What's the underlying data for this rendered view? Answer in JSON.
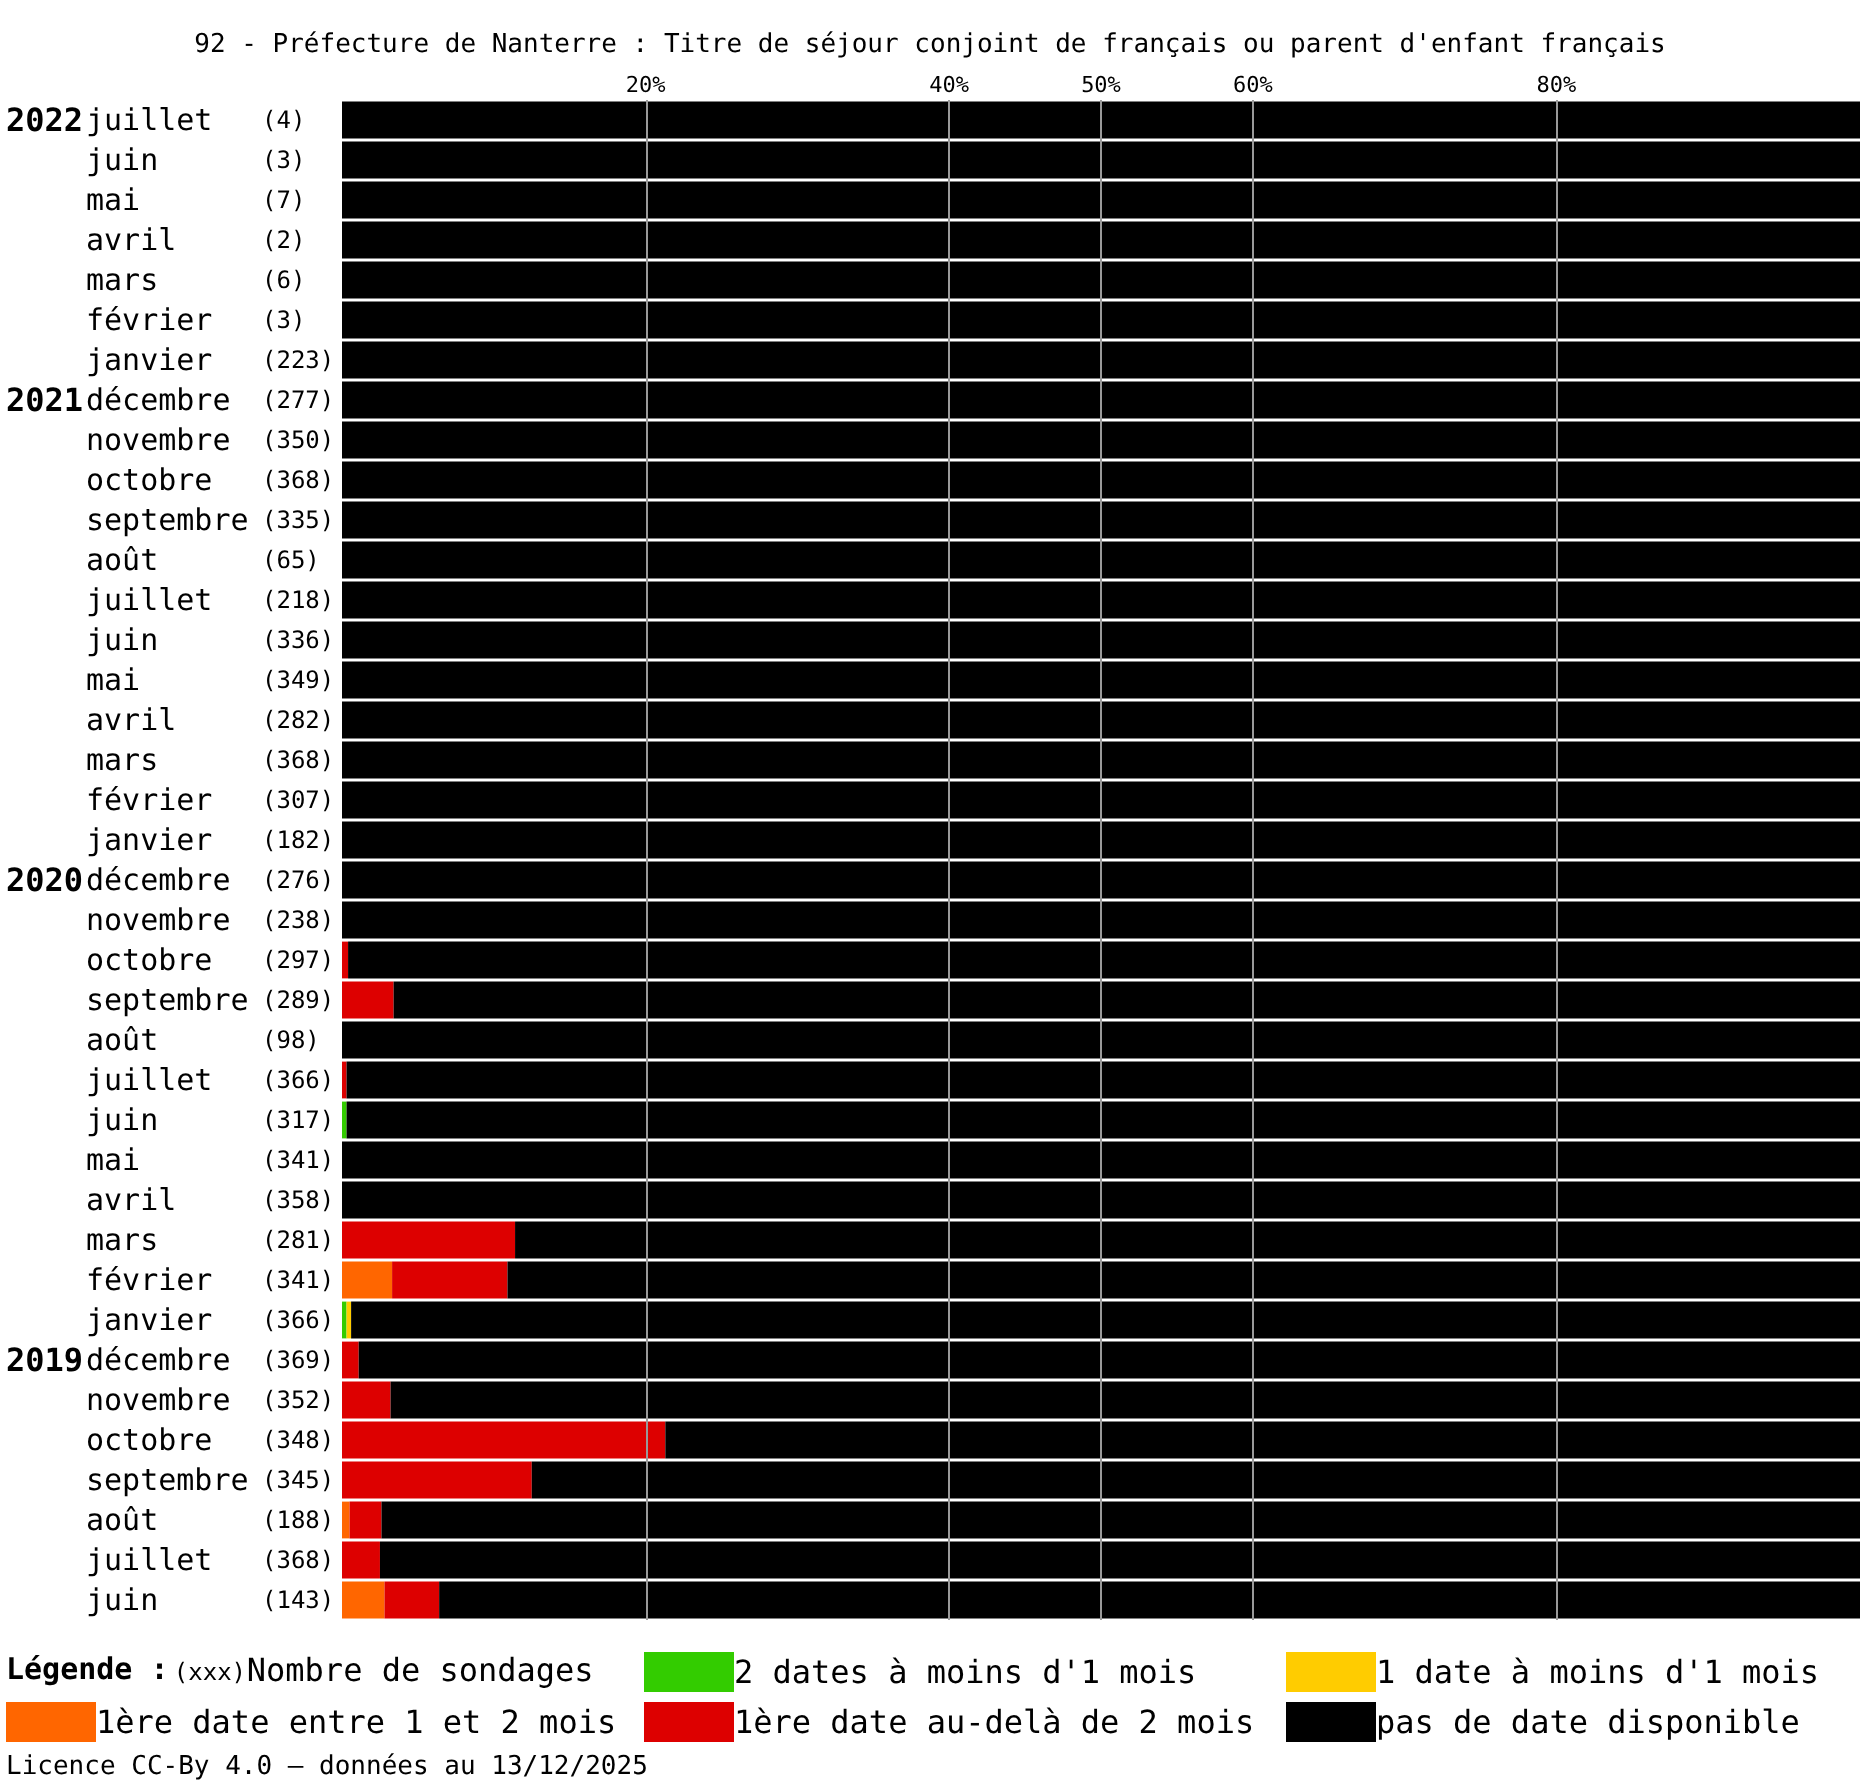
{
  "chart_data": {
    "type": "bar",
    "orientation": "horizontal",
    "stacked": true,
    "title": "92 - Préfecture de Nanterre : Titre de séjour conjoint de français ou parent d'enfant français",
    "legend_title": "Légende :",
    "annotations": [
      "(xxx)Nombre de sondages",
      "Licence CC-By 4.0 — données au 13/12/2025"
    ],
    "categories": [
      "2022juillet (4)",
      "juin (3)",
      "mai (7)",
      "avril (2)",
      "mars (6)",
      "février (3)",
      "janvier (223)",
      "2021décembre (277)",
      "novembre (350)",
      "octobre (368)",
      "septembre (335)",
      "août (65)",
      "juillet (218)",
      "juin (336)",
      "mai (349)",
      "avril (282)",
      "mars (368)",
      "février (307)",
      "janvier (182)",
      "2020décembre (276)",
      "novembre (238)",
      "octobre (297)",
      "septembre (289)",
      "août (98)",
      "juillet (366)",
      "juin (317)",
      "mai (341)",
      "avril (358)",
      "mars (281)",
      "février (341)",
      "janvier (366)",
      "2019décembre (369)",
      "novembre (352)",
      "octobre (348)",
      "septembre (345)",
      "août (188)",
      "juillet (368)",
      "juin (143)"
    ],
    "series": [
      {
        "name": "2 dates à moins d'1 mois",
        "color": "#33cc00",
        "values": [
          0,
          0,
          0,
          0,
          0,
          0,
          0,
          0,
          0,
          0,
          0,
          0,
          0,
          0,
          0,
          0,
          0,
          0,
          0,
          0,
          0,
          0,
          0,
          0,
          0,
          0.3,
          0,
          0,
          0,
          0,
          0.3,
          0,
          0,
          0,
          0,
          0,
          0,
          0
        ]
      },
      {
        "name": "1 date à moins d'1 mois",
        "color": "#ffcc00",
        "values": [
          0,
          0,
          0,
          0,
          0,
          0,
          0,
          0,
          0,
          0,
          0,
          0,
          0,
          0,
          0,
          0,
          0,
          0,
          0,
          0,
          0,
          0,
          0,
          0,
          0,
          0,
          0,
          0,
          0,
          0,
          0.3,
          0,
          0,
          0,
          0,
          0,
          0,
          0
        ]
      },
      {
        "name": "1ère date entre 1 et 2 mois",
        "color": "#ff6600",
        "values": [
          0,
          0,
          0,
          0,
          0,
          0,
          0,
          0,
          0,
          0,
          0,
          0,
          0,
          0,
          0,
          0,
          0,
          0,
          0,
          0,
          0,
          0,
          0,
          0,
          0,
          0,
          0,
          0,
          0,
          3.3,
          0,
          0,
          0,
          0,
          0,
          0.5,
          0,
          2.8
        ]
      },
      {
        "name": "1ère date au-delà de 2 mois",
        "color": "#dd0000",
        "values": [
          0,
          0,
          0,
          0,
          0,
          0,
          0,
          0,
          0,
          0,
          0,
          0,
          0,
          0,
          0,
          0,
          0,
          0,
          0,
          0,
          0,
          0.4,
          3.4,
          0,
          0.3,
          0,
          0,
          0,
          11.4,
          7.6,
          0,
          1.1,
          3.2,
          21.3,
          12.5,
          2.1,
          2.5,
          3.6
        ]
      },
      {
        "name": "pas de date disponible",
        "color": "#000000",
        "values": [
          100,
          100,
          100,
          100,
          100,
          100,
          100,
          100,
          100,
          100,
          100,
          100,
          100,
          100,
          100,
          100,
          100,
          100,
          100,
          100,
          100,
          99.6,
          96.6,
          100,
          99.7,
          99.7,
          100,
          100,
          88.6,
          89.1,
          99.4,
          98.9,
          96.8,
          78.7,
          87.5,
          97.4,
          97.5,
          93.6
        ]
      }
    ],
    "xlim": [
      0,
      100
    ],
    "xticks": [
      {
        "value": 20,
        "label": "20%"
      },
      {
        "value": 40,
        "label": "40%"
      },
      {
        "value": 50,
        "label": "50%"
      },
      {
        "value": 60,
        "label": "60%"
      },
      {
        "value": 80,
        "label": "80%"
      }
    ],
    "grid": "x",
    "legend": "bottom"
  }
}
